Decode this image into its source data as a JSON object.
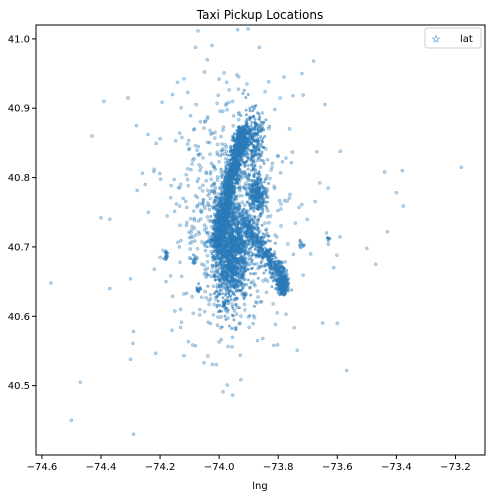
{
  "chart_data": {
    "type": "scatter",
    "title": "Taxi Pickup Locations",
    "xlabel": "lng",
    "ylabel": "",
    "xlim": [
      -74.62,
      -73.1
    ],
    "ylim": [
      40.4,
      41.02
    ],
    "xticks": [
      -74.6,
      -74.4,
      -74.2,
      -74.0,
      -73.8,
      -73.6,
      -73.4,
      -73.2
    ],
    "xtick_labels": [
      "−74.6",
      "−74.4",
      "−74.2",
      "−74.0",
      "−73.8",
      "−73.6",
      "−73.4",
      "−73.2"
    ],
    "yticks": [
      40.5,
      40.6,
      40.7,
      40.8,
      40.9,
      41.0
    ],
    "ytick_labels": [
      "40.5",
      "40.6",
      "40.7",
      "40.8",
      "40.9",
      "41.0"
    ],
    "grid": false,
    "legend": {
      "position": "top-right",
      "entries": [
        "lat"
      ]
    },
    "series": [
      {
        "name": "lat",
        "color": "#2a7ab8",
        "marker": "star",
        "sample_outliers": [
          [
            -74.57,
            40.648
          ],
          [
            -74.47,
            40.505
          ],
          [
            -74.5,
            40.45
          ],
          [
            -74.29,
            40.43
          ],
          [
            -74.3,
            40.538
          ],
          [
            -74.29,
            40.578
          ],
          [
            -74.37,
            40.64
          ],
          [
            -74.3,
            40.654
          ],
          [
            -74.43,
            40.86
          ],
          [
            -74.39,
            40.91
          ],
          [
            -74.28,
            40.875
          ],
          [
            -74.4,
            40.742
          ],
          [
            -74.37,
            40.74
          ],
          [
            -74.24,
            40.75
          ],
          [
            -74.22,
            40.812
          ],
          [
            -74.25,
            40.79
          ],
          [
            -74.2,
            40.856
          ],
          [
            -74.18,
            40.65
          ],
          [
            -74.16,
            40.58
          ],
          [
            -74.13,
            40.61
          ],
          [
            -74.08,
            40.988
          ],
          [
            -74.0,
            40.942
          ],
          [
            -73.94,
            40.948
          ],
          [
            -74.04,
            40.97
          ],
          [
            -73.68,
            40.968
          ],
          [
            -73.75,
            40.918
          ],
          [
            -73.78,
            40.945
          ],
          [
            -73.72,
            40.95
          ],
          [
            -73.59,
            40.838
          ],
          [
            -73.44,
            40.808
          ],
          [
            -73.18,
            40.815
          ],
          [
            -73.38,
            40.81
          ],
          [
            -73.4,
            40.778
          ],
          [
            -73.43,
            40.722
          ],
          [
            -73.5,
            40.698
          ],
          [
            -73.47,
            40.675
          ],
          [
            -73.6,
            40.59
          ],
          [
            -73.63,
            40.704
          ],
          [
            -73.69,
            40.69
          ],
          [
            -73.87,
            40.565
          ],
          [
            -74.0,
            40.563
          ],
          [
            -73.88,
            40.598
          ],
          [
            -74.2,
            40.685
          ],
          [
            -74.19,
            40.695
          ]
        ]
      }
    ]
  }
}
